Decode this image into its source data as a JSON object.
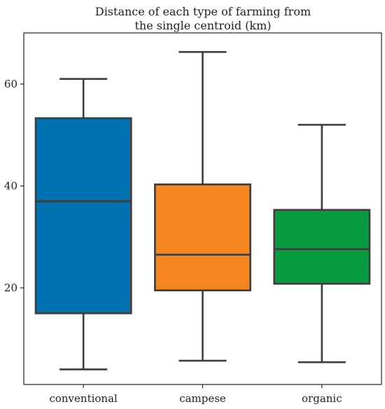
{
  "chart_data": {
    "type": "box",
    "title": [
      "Distance of each type of farming from",
      "the single centroid (km)"
    ],
    "xlabel": "",
    "ylabel": "",
    "ylim": [
      0,
      70
    ],
    "yticks": [
      20,
      40,
      60
    ],
    "grid": false,
    "categories": [
      "conventional",
      "campese",
      "organic"
    ],
    "series": [
      {
        "category": "conventional",
        "min": 4,
        "q1": 15,
        "median": 37,
        "q3": 53.3,
        "max": 61,
        "color": "#0072B2"
      },
      {
        "category": "campese",
        "min": 5.7,
        "q1": 19.5,
        "median": 26.5,
        "q3": 40.3,
        "max": 66.3,
        "color": "#F5851F"
      },
      {
        "category": "organic",
        "min": 5.4,
        "q1": 20.8,
        "median": 27.6,
        "q3": 35.3,
        "max": 52,
        "color": "#079A3F"
      }
    ]
  }
}
